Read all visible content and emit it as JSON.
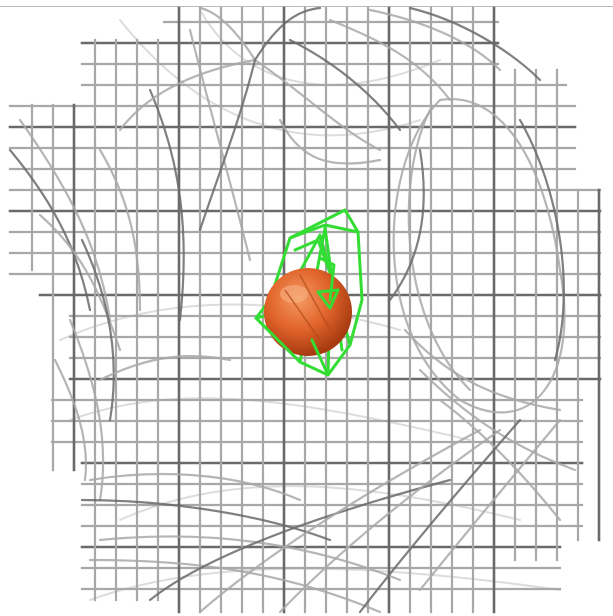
{
  "viewport": {
    "background": "#ffffff",
    "mesh_color": "#a8a8a8",
    "mesh_dark_color": "#6a6a6a",
    "mesh_light_color": "#d8d8d8",
    "highlight_color": "#33dd33",
    "sphere_color": "#e0632a",
    "sphere_shade_color": "#a63a10"
  },
  "objects": [
    {
      "type": "wireframe-grid-mesh"
    },
    {
      "type": "highlighted-wireframe-polygon"
    },
    {
      "type": "sphere-marker"
    }
  ]
}
